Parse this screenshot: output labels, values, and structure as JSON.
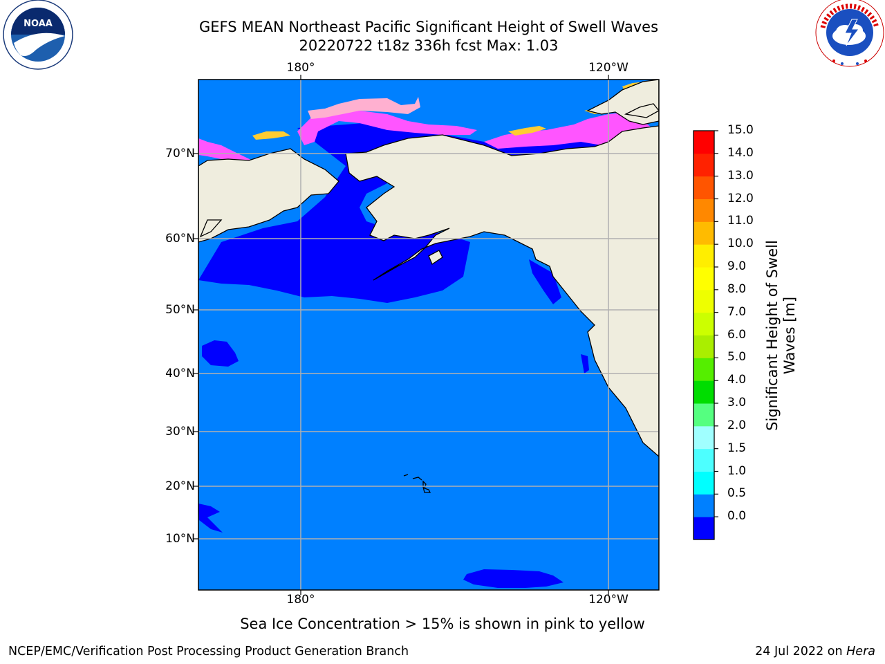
{
  "title_line1": "GEFS MEAN Northeast Pacific Significant Height of Swell Waves",
  "title_line2": "20220722 t18z 336h fcst   Max: 1.03",
  "logos": {
    "left": {
      "name": "noaa-logo",
      "text": "NOAA",
      "ring_text": "NATIONAL OCEANIC AND ATMOSPHERIC ADMINISTRATION · U.S. DEPARTMENT OF COMMERCE"
    },
    "right": {
      "name": "nws-logo",
      "ring_text": "NATIONAL WEATHER SERVICE"
    }
  },
  "map": {
    "longitude_labels": [
      "180°",
      "120°W"
    ],
    "latitude_labels": [
      "70°N",
      "60°N",
      "50°N",
      "40°N",
      "30°N",
      "20°N",
      "10°N"
    ],
    "colors": {
      "land": "#efedde",
      "ocean_0_0_5": "#0000ff",
      "ocean_0_5_1_0": "#0080ff",
      "ice_low": "#ff55ff",
      "ice_mid": "#ffb0d0",
      "ice_high": "#ffcc33",
      "coast": "#000000",
      "grid": "#b0b0b0"
    }
  },
  "colorbar": {
    "label": "Significant Height of Swell Waves [m]",
    "label_line1": "Significant Height of Swell",
    "label_line2": "Waves [m]",
    "ticks": [
      "15.0",
      "14.0",
      "13.0",
      "12.0",
      "11.0",
      "10.0",
      "9.0",
      "8.0",
      "7.0",
      "6.0",
      "5.0",
      "4.0",
      "3.0",
      "2.0",
      "1.5",
      "1.0",
      "0.5",
      "0.0"
    ],
    "colors_bottom_to_top": [
      "#0000ff",
      "#0080ff",
      "#00ffff",
      "#4dffff",
      "#a0ffff",
      "#55ff80",
      "#00dd00",
      "#55ee00",
      "#aaee00",
      "#ccff00",
      "#eeff00",
      "#ffff00",
      "#ffee00",
      "#ffbb00",
      "#ff8800",
      "#ff5500",
      "#ff2200",
      "#ff0000"
    ]
  },
  "footnote": "Sea Ice Concentration > 15% is shown in pink to yellow",
  "credit": "NCEP/EMC/Verification Post Processing Product Generation Branch",
  "stamp_date": "24 Jul 2022 on",
  "stamp_host": "Hera"
}
